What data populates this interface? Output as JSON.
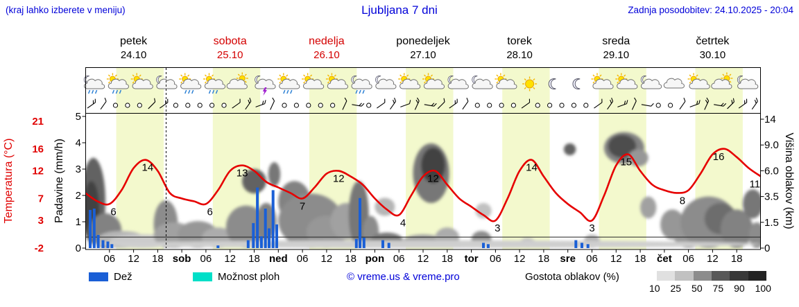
{
  "header": {
    "hint": "(kraj lahko izberete v meniju)",
    "title": "Ljubljana 7 dni",
    "updated": "Zadnja posodobitev: 24.10.2025 - 20:04"
  },
  "days": [
    {
      "name": "petek",
      "date": "24.10",
      "color": "#000000"
    },
    {
      "name": "sobota",
      "date": "25.10",
      "color": "#d40000"
    },
    {
      "name": "nedelja",
      "date": "26.10",
      "color": "#d40000"
    },
    {
      "name": "ponedeljek",
      "date": "27.10",
      "color": "#000000"
    },
    {
      "name": "torek",
      "date": "28.10",
      "color": "#000000"
    },
    {
      "name": "sreda",
      "date": "29.10",
      "color": "#000000"
    },
    {
      "name": "četrtek",
      "date": "30.10",
      "color": "#000000"
    }
  ],
  "axes": {
    "temp_label": "Temperatura (°C)",
    "temp_ticks": [
      21,
      16,
      12,
      7,
      3,
      -2
    ],
    "precip_label": "Padavine (mm/h)",
    "precip_ticks": [
      5,
      4,
      3,
      2,
      1,
      0
    ],
    "cloud_label": "Višina oblakov (km)",
    "cloud_ticks": [
      "14",
      "9.0",
      "6.0",
      "3.5",
      "1.5",
      "0"
    ],
    "cloud_tick_km": [
      14,
      9,
      6,
      3.5,
      1.5,
      0
    ],
    "hour_labels": [
      "06",
      "12",
      "18"
    ],
    "boundary_labels": [
      "sob",
      "ned",
      "pon",
      "tor",
      "sre",
      "čet"
    ]
  },
  "legend": {
    "rain_label": "Dež",
    "rain_color": "#1a5fd6",
    "showers_label": "Možnost ploh",
    "showers_color": "#00dfc8",
    "copyright": "© vreme.us & vreme.pro",
    "cloud_density_label": "Gostota oblakov (%)",
    "scale_values": [
      "10",
      "25",
      "50",
      "75",
      "90",
      "100"
    ],
    "scale_colors": [
      "#e0e0e0",
      "#c1c1c1",
      "#8c8c8c",
      "#585858",
      "#383838",
      "#232323"
    ]
  },
  "chart_data": {
    "type": "line",
    "title": "Ljubljana 7 dni",
    "x_unit": "hour",
    "x_range": [
      0,
      168
    ],
    "temp_axis_range": [
      -2,
      21
    ],
    "precip_axis_range": [
      0,
      5
    ],
    "cloud_axis_km": [
      0,
      1.5,
      3.5,
      6,
      9,
      14
    ],
    "now_line_hour": 20.1,
    "zero_degree_line": 0,
    "daylight_bands": {
      "start_hour": 7.7,
      "end_hour": 19.5,
      "color": "#f3f9cd"
    },
    "temp_series": {
      "name": "Temperatura",
      "color": "#e60000",
      "x_step_hours": 3,
      "values": [
        8,
        6.5,
        6,
        8.5,
        12.5,
        14,
        12,
        8,
        7,
        6.5,
        6,
        8.5,
        12,
        13,
        12,
        10,
        9,
        8,
        7,
        9,
        11.5,
        12,
        11,
        9.5,
        7,
        5,
        4,
        7.5,
        11,
        12,
        9.5,
        7,
        5.5,
        4,
        3,
        7,
        12,
        14,
        11,
        8,
        6,
        4.5,
        3,
        7.5,
        13,
        15,
        12,
        9.5,
        8.5,
        8,
        8.5,
        11.5,
        15,
        16,
        14.5,
        12.5,
        11
      ]
    },
    "temp_max_labels": [
      {
        "h": 15.5,
        "v": 14,
        "label": "14"
      },
      {
        "h": 39,
        "v": 13,
        "label": "13"
      },
      {
        "h": 63,
        "v": 12,
        "label": "12"
      },
      {
        "h": 86.5,
        "v": 12,
        "label": "12"
      },
      {
        "h": 111,
        "v": 14,
        "label": "14"
      },
      {
        "h": 134.5,
        "v": 15,
        "label": "15"
      },
      {
        "h": 157.5,
        "v": 16,
        "label": "16"
      },
      {
        "h": 166.5,
        "v": 11,
        "label": "11"
      }
    ],
    "temp_min_labels": [
      {
        "h": 7,
        "v": 6,
        "label": "6"
      },
      {
        "h": 31,
        "v": 6,
        "label": "6"
      },
      {
        "h": 54,
        "v": 7,
        "label": "7"
      },
      {
        "h": 79,
        "v": 4,
        "label": "4"
      },
      {
        "h": 102.5,
        "v": 3,
        "label": "3"
      },
      {
        "h": 126,
        "v": 3,
        "label": "3"
      },
      {
        "h": 148.5,
        "v": 8,
        "label": "8"
      }
    ],
    "precip_bars": {
      "name": "Dež",
      "color": "#1a5fd6",
      "points": [
        [
          1.2,
          1.45
        ],
        [
          2.2,
          1.5
        ],
        [
          3.2,
          0.5
        ],
        [
          4.4,
          0.3
        ],
        [
          5.6,
          0.25
        ],
        [
          6.6,
          0.15
        ],
        [
          33,
          0.1
        ],
        [
          40.5,
          0.3
        ],
        [
          41.8,
          0.95
        ],
        [
          42.8,
          2.3
        ],
        [
          43.8,
          0.45
        ],
        [
          44.8,
          1.5
        ],
        [
          45.7,
          0.75
        ],
        [
          46.7,
          2.2
        ],
        [
          47.6,
          0.9
        ],
        [
          67.4,
          0.35
        ],
        [
          68.3,
          1.9
        ],
        [
          69.3,
          0.4
        ],
        [
          74,
          0.3
        ],
        [
          75.5,
          0.2
        ],
        [
          99,
          0.2
        ],
        [
          100.2,
          0.15
        ],
        [
          122,
          0.3
        ],
        [
          123.5,
          0.2
        ],
        [
          125,
          0.15
        ]
      ]
    },
    "cloud_blobs": [
      [
        2,
        3,
        0.2,
        7.5,
        70
      ],
      [
        1.5,
        2,
        0.5,
        5,
        85
      ],
      [
        5,
        4,
        0,
        2.2,
        55
      ],
      [
        9,
        6,
        0,
        1,
        30
      ],
      [
        14,
        8,
        0,
        0.8,
        20
      ],
      [
        20,
        3,
        0,
        3.2,
        50
      ],
      [
        22,
        5,
        0,
        1.5,
        40
      ],
      [
        28,
        5,
        0,
        1.6,
        45
      ],
      [
        33,
        4,
        0,
        1.2,
        35
      ],
      [
        40,
        5,
        0,
        2.8,
        50
      ],
      [
        42,
        3,
        3.8,
        6.2,
        70
      ],
      [
        45,
        2.5,
        0.5,
        3,
        55
      ],
      [
        47,
        1.5,
        4.5,
        7,
        60
      ],
      [
        52,
        4,
        1.5,
        5,
        55
      ],
      [
        56,
        8,
        0,
        3.8,
        50
      ],
      [
        60,
        5,
        0,
        2,
        45
      ],
      [
        65,
        4,
        0.5,
        3,
        40
      ],
      [
        68,
        2.5,
        0,
        5,
        60
      ],
      [
        71,
        2,
        0,
        2,
        50
      ],
      [
        75,
        4,
        0,
        0.9,
        60
      ],
      [
        74.5,
        2.5,
        2,
        3.4,
        30
      ],
      [
        84,
        5,
        0,
        0.8,
        40
      ],
      [
        86,
        4.5,
        3,
        9.3,
        60
      ],
      [
        86.5,
        3,
        4.8,
        8.7,
        85
      ],
      [
        90,
        3,
        0,
        1.2,
        35
      ],
      [
        98.5,
        2.5,
        0,
        1,
        50
      ],
      [
        99,
        2,
        1.8,
        3,
        25
      ],
      [
        110,
        2,
        0,
        0.6,
        25
      ],
      [
        120.5,
        1.5,
        7.8,
        9.3,
        70
      ],
      [
        126,
        2,
        0,
        0.8,
        30
      ],
      [
        134,
        5,
        6.8,
        11.5,
        55
      ],
      [
        133.5,
        3.5,
        7.5,
        11,
        80
      ],
      [
        137.5,
        2.5,
        6.5,
        8.5,
        45
      ],
      [
        140,
        2,
        1.8,
        3.5,
        40
      ],
      [
        146,
        3,
        0.5,
        2.5,
        45
      ],
      [
        150,
        4,
        0,
        2,
        45
      ],
      [
        155,
        7,
        0,
        3.5,
        50
      ],
      [
        158,
        4,
        0.8,
        3,
        65
      ],
      [
        162,
        4,
        0,
        2.5,
        55
      ],
      [
        166,
        2.5,
        1.8,
        4.2,
        60
      ],
      [
        167,
        2,
        0,
        1.5,
        50
      ],
      [
        84,
        84,
        0,
        0.45,
        18
      ]
    ],
    "icons": [
      {
        "h": 2,
        "type": "moon-cloud-rain"
      },
      {
        "h": 8,
        "type": "sun-cloud-rain"
      },
      {
        "h": 14,
        "type": "sun-cloud"
      },
      {
        "h": 20,
        "type": "moon-cloud"
      },
      {
        "h": 26,
        "type": "sun-cloud-rain"
      },
      {
        "h": 32,
        "type": "sun-cloud-rain"
      },
      {
        "h": 38,
        "type": "cloud-sun"
      },
      {
        "h": 44.5,
        "type": "moon-cloud-storm"
      },
      {
        "h": 50.5,
        "type": "sun-cloud-rain"
      },
      {
        "h": 56.5,
        "type": "sun-cloud"
      },
      {
        "h": 62.5,
        "type": "sun-cloud"
      },
      {
        "h": 68.5,
        "type": "moon-cloud-rain"
      },
      {
        "h": 74.5,
        "type": "moon-cloud"
      },
      {
        "h": 80.5,
        "type": "sun-cloud"
      },
      {
        "h": 86.5,
        "type": "sun-cloud"
      },
      {
        "h": 92.5,
        "type": "moon-cloud"
      },
      {
        "h": 98.5,
        "type": "moon-cloud"
      },
      {
        "h": 104.5,
        "type": "sun-cloud"
      },
      {
        "h": 110.5,
        "type": "sun"
      },
      {
        "h": 116.5,
        "type": "moon"
      },
      {
        "h": 122.5,
        "type": "moon"
      },
      {
        "h": 128.5,
        "type": "sun-cloud"
      },
      {
        "h": 134.5,
        "type": "sun-cloud"
      },
      {
        "h": 140.5,
        "type": "moon-cloud"
      },
      {
        "h": 146.5,
        "type": "cloud"
      },
      {
        "h": 152.5,
        "type": "sun-cloud"
      },
      {
        "h": 158.5,
        "type": "cloud-sun"
      },
      {
        "h": 164.5,
        "type": "moon-cloud"
      }
    ],
    "wind": [
      2,
      1,
      0,
      0,
      0,
      1,
      2,
      0,
      0,
      0,
      0,
      0,
      1,
      2,
      2,
      1,
      0,
      0,
      0,
      0,
      0,
      1,
      2,
      0,
      1,
      2,
      1,
      2,
      2,
      1,
      2,
      1,
      0,
      0,
      0,
      0,
      1,
      0,
      0,
      0,
      0,
      0,
      1,
      2,
      2,
      1,
      1,
      0,
      0,
      1,
      2,
      2,
      2,
      2,
      2,
      2
    ]
  }
}
